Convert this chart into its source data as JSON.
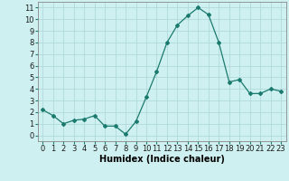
{
  "x": [
    0,
    1,
    2,
    3,
    4,
    5,
    6,
    7,
    8,
    9,
    10,
    11,
    12,
    13,
    14,
    15,
    16,
    17,
    18,
    19,
    20,
    21,
    22,
    23
  ],
  "y": [
    2.2,
    1.7,
    1.0,
    1.3,
    1.4,
    1.7,
    0.8,
    0.8,
    0.1,
    1.2,
    3.3,
    5.5,
    8.0,
    9.5,
    10.3,
    11.0,
    10.4,
    8.0,
    4.6,
    4.8,
    3.6,
    3.6,
    4.0,
    3.8
  ],
  "line_color": "#1a7a6e",
  "marker": "D",
  "marker_size": 2.0,
  "bg_color": "#cff0f0",
  "grid_color": "#b0dada",
  "xlabel": "Humidex (Indice chaleur)",
  "xlabel_fontsize": 7,
  "tick_fontsize": 6,
  "xlim": [
    -0.5,
    23.5
  ],
  "ylim": [
    -0.5,
    11.5
  ],
  "yticks": [
    0,
    1,
    2,
    3,
    4,
    5,
    6,
    7,
    8,
    9,
    10,
    11
  ],
  "xtick_labels": [
    "0",
    "1",
    "2",
    "3",
    "4",
    "5",
    "6",
    "7",
    "8",
    "9",
    "10",
    "11",
    "12",
    "13",
    "14",
    "15",
    "16",
    "17",
    "18",
    "19",
    "20",
    "21",
    "22",
    "23"
  ]
}
